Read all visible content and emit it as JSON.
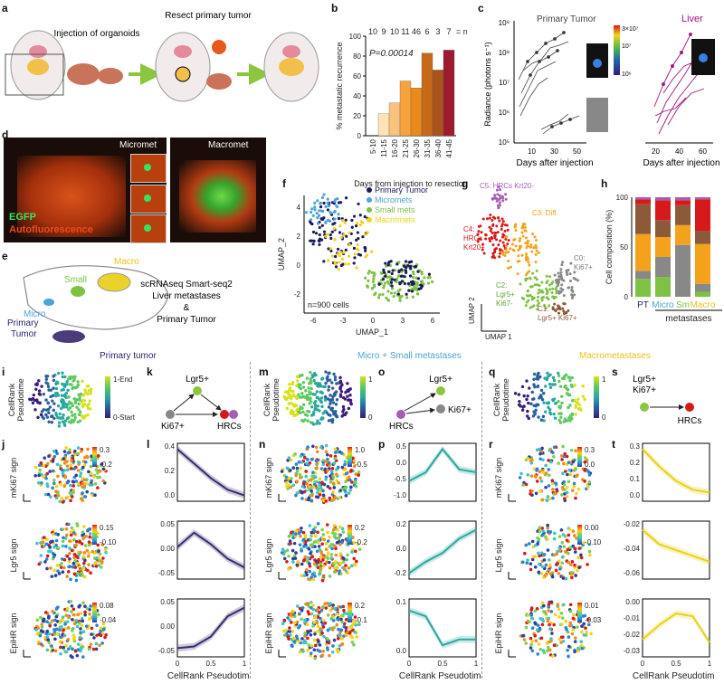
{
  "panel_letters": {
    "a": "a",
    "b": "b",
    "c": "c",
    "d": "d",
    "e": "e",
    "f": "f",
    "g": "g",
    "h": "h",
    "i": "i",
    "j": "j",
    "k": "k",
    "l": "l",
    "m": "m",
    "n": "n",
    "o": "o",
    "p": "p",
    "q": "q",
    "r": "r",
    "s": "s",
    "t": "t"
  },
  "panel_a": {
    "step1": "Injection of organoids",
    "step2": "Resect primary tumor"
  },
  "panel_b": {
    "n_labels": [
      "10",
      "9",
      "10",
      "11",
      "46",
      "6",
      "3",
      "7"
    ],
    "n_suffix": "= n",
    "pvalue": "P=0.00014",
    "ylabel": "% metastatic recurrence",
    "xlabel": "Days from injection to resection",
    "yticks": [
      "0",
      "20",
      "40",
      "60",
      "80",
      "100"
    ]
  },
  "panel_c": {
    "title_pt": "Primary Tumor",
    "title_liver": "Liver",
    "ylabel": "Radiance (photons s⁻¹)",
    "xlabel": "Days after injection",
    "yticks": [
      "10⁵",
      "10⁶",
      "10⁷",
      "10⁸",
      "10⁹"
    ],
    "xticks_pt": [
      "10",
      "30",
      "50"
    ],
    "xticks_liver": [
      "20",
      "40",
      "60"
    ],
    "colorbar": [
      "3×10⁷",
      "10⁷",
      "10⁶"
    ]
  },
  "panel_d": {
    "micromet": "Micromet",
    "macromet": "Macromet",
    "egfp": "EGFP",
    "auto": "Autofluorescence"
  },
  "panel_e": {
    "macro": "Macro",
    "small": "Small",
    "micro": "Micro",
    "primary": "Primary",
    "tumor": "Tumor",
    "desc1": "scRNAseq Smart-seq2",
    "desc2": "Liver metastases",
    "desc3": "&",
    "desc4": "Primary Tumor"
  },
  "panel_f": {
    "legend": [
      "Primary Tumor",
      "Micromets",
      "Small mets",
      "Macromets"
    ],
    "legend_colors": [
      "#1a1a5e",
      "#4fa3d9",
      "#7dc242",
      "#f2d21b"
    ],
    "ylabel": "UMAP_2",
    "xlabel": "UMAP_1",
    "cells": "n=900 cells",
    "xticks": [
      "-6",
      "-3",
      "0",
      "3",
      "6"
    ],
    "yticks": [
      "-2",
      "0",
      "2",
      "4"
    ]
  },
  "panel_g": {
    "c5": "C5: HRCs Krt20-",
    "c4a": "C4:",
    "c4b": "HRCs",
    "c4c": "Krt20+",
    "c3": "C3: Diff.",
    "c0a": "C0:",
    "c0b": "Ki67+",
    "c2a": "C2:",
    "c2b": "Lgr5+",
    "c2c": "Ki67-",
    "c1a": "C1:",
    "c1b": "Lgr5+ Ki67+",
    "umap1": "UMAP 1",
    "umap2": "UMAP 2"
  },
  "panel_h": {
    "ylabel": "Cell composition (%)",
    "yticks": [
      "0",
      "50",
      "100"
    ],
    "cats": [
      "PT",
      "Micro",
      "Sm",
      "Macro"
    ],
    "xlabel": "metastases"
  },
  "section_titles": {
    "primary": "Primary tumor",
    "micro_small": "Micro + Small metastases",
    "macro": "Macrometastases"
  },
  "panel_i": {
    "ylabel1": "CellRank",
    "ylabel2": "Pseudotime",
    "end": "1-End",
    "start": "0-Start"
  },
  "panel_k": {
    "lgr5": "Lgr5+",
    "ki67": "Ki67+",
    "hrcs": "HRCs"
  },
  "panel_m": {
    "ylabel1": "CellRank",
    "ylabel2": "Pseudotime",
    "cb_top": "1",
    "cb_bot": "0"
  },
  "panel_o": {
    "lgr5": "Lgr5+",
    "hrcs": "HRCs",
    "ki67": "Ki67+"
  },
  "panel_q": {
    "ylabel1": "CellRank",
    "ylabel2": "Pseudotime",
    "cb_top": "1",
    "cb_bot": "0"
  },
  "panel_s": {
    "lgr5": "Lgr5+",
    "ki67": "Ki67+",
    "hrcs": "HRCs"
  },
  "sign_labels": [
    "mKi67 sign",
    "Lgr5 sign",
    "EpiHR sign"
  ],
  "panel_j": {
    "cb": [
      [
        "0.3",
        "-0.2"
      ],
      [
        "0.15",
        "-0.10"
      ],
      [
        "0.08",
        "-0.04"
      ]
    ]
  },
  "panel_n": {
    "cb": [
      [
        "1.0",
        "-0.5"
      ],
      [
        "0.2",
        "-0.2"
      ],
      [
        "0.2",
        "-0.1"
      ]
    ]
  },
  "panel_r": {
    "cb": [
      [
        "0.3",
        "0.0"
      ],
      [
        "0.00",
        "-0.10"
      ],
      [
        "0.01",
        "-0.03"
      ]
    ]
  },
  "pseudotime_xlabel": "CellRank Pseudotime",
  "trend_xticks": [
    "0",
    "0.5",
    "1"
  ],
  "panel_l": {
    "yticks": [
      [
        "0.4",
        "0.2",
        "0.0"
      ],
      [
        "0.05",
        "0.00",
        "-0.05"
      ],
      [
        "0.05",
        "0.00",
        "-0.05"
      ]
    ]
  },
  "panel_p": {
    "yticks": [
      [
        "0.5",
        "0.0",
        "-0.5",
        "-1.0"
      ],
      [
        "0.2",
        "0.0",
        "-0.2"
      ],
      [
        "0.1",
        "0.0"
      ]
    ]
  },
  "panel_t": {
    "yticks": [
      [
        "0.3",
        "0.2",
        "0.1",
        "0.0"
      ],
      [
        "-0.02",
        "-0.04",
        "-0.06"
      ],
      [
        "0.00",
        "-0.01",
        "-0.02",
        "-0.03"
      ]
    ]
  },
  "colors": {
    "primary_title": "#2b2470",
    "micro_title": "#4fa3d9",
    "macro_title": "#e8c21c",
    "purple_line": "#3b2a6e",
    "teal_line": "#2aa8a0",
    "yellow_line": "#e8d21a",
    "liver_magenta": "#a0177a"
  },
  "chart_data": [
    {
      "type": "bar",
      "title": "",
      "categories": [
        "5-10",
        "11-15",
        "16-20",
        "21-25",
        "26-30",
        "31-35",
        "36-40",
        "41-45"
      ],
      "values": [
        0,
        22,
        33,
        55,
        48,
        83,
        66,
        86
      ],
      "xlabel": "Days from injection to resection",
      "ylabel": "% metastatic recurrence",
      "ylim": [
        0,
        100
      ]
    },
    {
      "type": "bar",
      "title": "",
      "categories": [
        "PT",
        "Micro",
        "Sm",
        "Macro"
      ],
      "series": [
        {
          "name": "C2",
          "values": [
            18,
            20,
            0,
            5
          ]
        },
        {
          "name": "C0",
          "values": [
            8,
            20,
            52,
            8
          ]
        },
        {
          "name": "C3",
          "values": [
            37,
            20,
            20,
            40
          ]
        },
        {
          "name": "C1",
          "values": [
            30,
            17,
            20,
            13
          ]
        },
        {
          "name": "C4",
          "values": [
            5,
            20,
            5,
            32
          ]
        },
        {
          "name": "C5",
          "values": [
            2,
            3,
            3,
            2
          ]
        }
      ],
      "ylabel": "Cell composition (%)",
      "ylim": [
        0,
        100
      ]
    }
  ]
}
